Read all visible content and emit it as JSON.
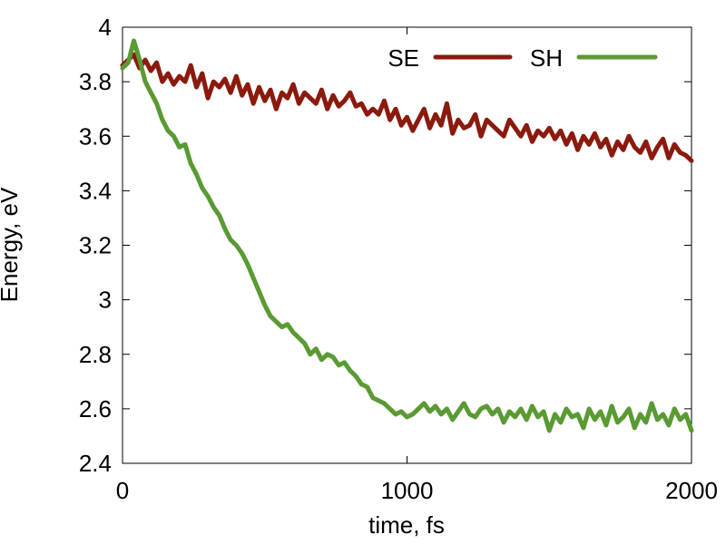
{
  "chart_data": {
    "type": "line",
    "xlabel": "time, fs",
    "ylabel": "Energy, eV",
    "xlim": [
      0,
      2000
    ],
    "ylim": [
      2.4,
      4.0
    ],
    "xticks": [
      0,
      1000,
      2000
    ],
    "xtick_labels": [
      "0",
      "1000",
      "2000"
    ],
    "yticks": [
      2.4,
      2.6,
      2.8,
      3.0,
      3.2,
      3.4,
      3.6,
      3.8,
      4.0
    ],
    "ytick_labels": [
      "2.4",
      "2.6",
      "2.8",
      "3",
      "3.2",
      "3.4",
      "3.6",
      "3.8",
      "4"
    ],
    "grid": false,
    "legend_position": "top-right",
    "series": [
      {
        "name": "SE",
        "color": "#8b1a0e",
        "x": [
          0,
          20,
          40,
          60,
          80,
          100,
          120,
          140,
          160,
          180,
          200,
          220,
          240,
          260,
          280,
          300,
          320,
          340,
          360,
          380,
          400,
          420,
          440,
          460,
          480,
          500,
          520,
          540,
          560,
          580,
          600,
          620,
          640,
          660,
          680,
          700,
          720,
          740,
          760,
          780,
          800,
          820,
          840,
          860,
          880,
          900,
          920,
          940,
          960,
          980,
          1000,
          1020,
          1040,
          1060,
          1080,
          1100,
          1120,
          1140,
          1160,
          1180,
          1200,
          1220,
          1240,
          1260,
          1280,
          1300,
          1320,
          1340,
          1360,
          1380,
          1400,
          1420,
          1440,
          1460,
          1480,
          1500,
          1520,
          1540,
          1560,
          1580,
          1600,
          1620,
          1640,
          1660,
          1680,
          1700,
          1720,
          1740,
          1760,
          1780,
          1800,
          1820,
          1840,
          1860,
          1880,
          1900,
          1920,
          1940,
          1960,
          1980,
          2000
        ],
        "y": [
          3.86,
          3.88,
          3.9,
          3.85,
          3.88,
          3.84,
          3.87,
          3.8,
          3.83,
          3.79,
          3.82,
          3.8,
          3.86,
          3.78,
          3.83,
          3.74,
          3.8,
          3.78,
          3.81,
          3.76,
          3.82,
          3.75,
          3.79,
          3.72,
          3.78,
          3.73,
          3.77,
          3.7,
          3.76,
          3.74,
          3.79,
          3.72,
          3.76,
          3.74,
          3.72,
          3.77,
          3.7,
          3.75,
          3.71,
          3.73,
          3.76,
          3.71,
          3.72,
          3.68,
          3.7,
          3.68,
          3.73,
          3.66,
          3.7,
          3.64,
          3.67,
          3.62,
          3.66,
          3.7,
          3.63,
          3.68,
          3.64,
          3.72,
          3.61,
          3.66,
          3.63,
          3.64,
          3.68,
          3.6,
          3.66,
          3.64,
          3.62,
          3.6,
          3.66,
          3.63,
          3.6,
          3.64,
          3.58,
          3.62,
          3.6,
          3.63,
          3.59,
          3.62,
          3.57,
          3.61,
          3.55,
          3.6,
          3.57,
          3.61,
          3.56,
          3.59,
          3.53,
          3.58,
          3.55,
          3.6,
          3.56,
          3.54,
          3.58,
          3.52,
          3.56,
          3.59,
          3.52,
          3.57,
          3.54,
          3.53,
          3.51
        ]
      },
      {
        "name": "SH",
        "color": "#5a9a33",
        "x": [
          0,
          20,
          40,
          60,
          80,
          100,
          120,
          140,
          160,
          180,
          200,
          220,
          240,
          260,
          280,
          300,
          320,
          340,
          360,
          380,
          400,
          420,
          440,
          460,
          480,
          500,
          520,
          540,
          560,
          580,
          600,
          620,
          640,
          660,
          680,
          700,
          720,
          740,
          760,
          780,
          800,
          820,
          840,
          860,
          880,
          900,
          920,
          940,
          960,
          980,
          1000,
          1020,
          1040,
          1060,
          1080,
          1100,
          1120,
          1140,
          1160,
          1180,
          1200,
          1220,
          1240,
          1260,
          1280,
          1300,
          1320,
          1340,
          1360,
          1380,
          1400,
          1420,
          1440,
          1460,
          1480,
          1500,
          1520,
          1540,
          1560,
          1580,
          1600,
          1620,
          1640,
          1660,
          1680,
          1700,
          1720,
          1740,
          1760,
          1780,
          1800,
          1820,
          1840,
          1860,
          1880,
          1900,
          1920,
          1940,
          1960,
          1980,
          2000
        ],
        "y": [
          3.85,
          3.87,
          3.95,
          3.88,
          3.8,
          3.76,
          3.72,
          3.66,
          3.62,
          3.6,
          3.56,
          3.57,
          3.5,
          3.46,
          3.41,
          3.38,
          3.34,
          3.31,
          3.26,
          3.22,
          3.2,
          3.17,
          3.13,
          3.08,
          3.03,
          2.98,
          2.94,
          2.92,
          2.9,
          2.91,
          2.88,
          2.86,
          2.84,
          2.8,
          2.82,
          2.78,
          2.8,
          2.79,
          2.76,
          2.77,
          2.74,
          2.72,
          2.69,
          2.68,
          2.64,
          2.63,
          2.62,
          2.6,
          2.58,
          2.59,
          2.57,
          2.58,
          2.6,
          2.62,
          2.59,
          2.61,
          2.58,
          2.6,
          2.56,
          2.59,
          2.62,
          2.58,
          2.57,
          2.6,
          2.61,
          2.58,
          2.6,
          2.55,
          2.59,
          2.57,
          2.6,
          2.56,
          2.61,
          2.57,
          2.59,
          2.52,
          2.58,
          2.55,
          2.6,
          2.57,
          2.58,
          2.53,
          2.6,
          2.56,
          2.59,
          2.54,
          2.61,
          2.55,
          2.57,
          2.6,
          2.53,
          2.58,
          2.55,
          2.62,
          2.56,
          2.58,
          2.54,
          2.6,
          2.56,
          2.58,
          2.52
        ]
      }
    ]
  }
}
